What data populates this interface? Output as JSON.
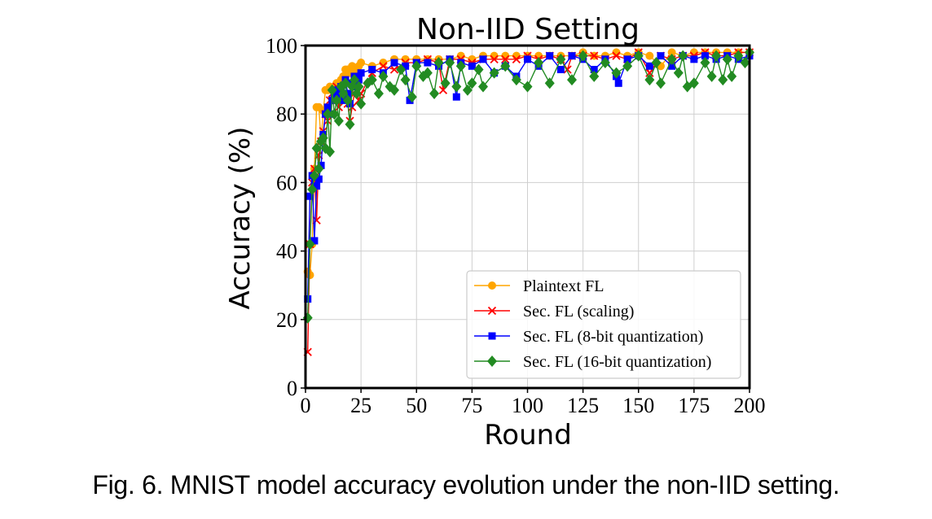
{
  "caption": "Fig. 6. MNIST model accuracy evolution under the non-IID setting.",
  "chart_data": {
    "type": "line",
    "title": "Non-IID Setting",
    "xlabel": "Round",
    "ylabel": "Accuracy (%)",
    "xlim": [
      0,
      200
    ],
    "ylim": [
      0,
      100
    ],
    "xticks": [
      0,
      25,
      50,
      75,
      100,
      125,
      150,
      175,
      200
    ],
    "yticks": [
      0,
      20,
      40,
      60,
      80,
      100
    ],
    "grid": true,
    "legend_position": "lower-right",
    "series": [
      {
        "name": "Plaintext FL",
        "color": "#FFA500",
        "marker": "circle",
        "x": [
          1,
          2,
          3,
          4,
          5,
          6,
          7,
          8,
          9,
          10,
          11,
          12,
          13,
          14,
          15,
          16,
          17,
          18,
          19,
          20,
          21,
          22,
          23,
          24,
          25,
          30,
          35,
          40,
          45,
          50,
          55,
          60,
          65,
          70,
          75,
          80,
          85,
          90,
          95,
          100,
          105,
          110,
          115,
          120,
          125,
          130,
          135,
          140,
          145,
          150,
          155,
          160,
          165,
          170,
          175,
          180,
          185,
          190,
          195,
          200
        ],
        "y": [
          34,
          33,
          42,
          64,
          82,
          82,
          72,
          81,
          87,
          87,
          88,
          87,
          88,
          89,
          88,
          90,
          91,
          93,
          93,
          92,
          94,
          91,
          93,
          94,
          95,
          94,
          95,
          96,
          96,
          96,
          96,
          96,
          96,
          97,
          96,
          97,
          97,
          97,
          97,
          97,
          97,
          97,
          97,
          97,
          98,
          97,
          97,
          98,
          97,
          98,
          97,
          94,
          98,
          97,
          98,
          98,
          98,
          98,
          98,
          98
        ]
      },
      {
        "name": "Sec. FL (scaling)",
        "color": "#FF0000",
        "marker": "x",
        "x": [
          1,
          2,
          3,
          4,
          5,
          6,
          7,
          8,
          9,
          10,
          11,
          12,
          13,
          14,
          15,
          16,
          17,
          18,
          19,
          20,
          21,
          22,
          23,
          24,
          25,
          30,
          35,
          40,
          45,
          50,
          55,
          60,
          62,
          65,
          70,
          75,
          80,
          85,
          90,
          95,
          100,
          105,
          110,
          115,
          118,
          120,
          125,
          130,
          135,
          140,
          145,
          150,
          155,
          160,
          165,
          170,
          175,
          180,
          185,
          190,
          195,
          200
        ],
        "y": [
          10.5,
          42,
          60,
          64,
          49,
          68,
          72,
          75,
          80,
          78,
          84,
          86,
          85,
          88,
          82,
          87,
          85,
          84,
          83,
          78,
          82,
          86,
          88,
          84,
          86,
          92,
          94,
          93,
          95,
          95,
          96,
          95,
          87,
          96,
          96,
          95,
          96,
          96,
          96,
          96,
          97,
          96,
          97,
          96,
          93,
          97,
          97,
          97,
          96,
          97,
          96,
          98,
          92,
          97,
          96,
          97,
          97,
          98,
          97,
          97,
          98,
          98
        ]
      },
      {
        "name": "Sec. FL (8-bit quantization)",
        "color": "#0000FF",
        "marker": "square",
        "x": [
          1,
          2,
          3,
          4,
          5,
          6,
          7,
          8,
          9,
          10,
          11,
          12,
          13,
          14,
          15,
          16,
          17,
          18,
          19,
          20,
          21,
          22,
          23,
          24,
          25,
          30,
          35,
          40,
          45,
          47,
          50,
          55,
          60,
          65,
          68,
          70,
          75,
          80,
          85,
          90,
          95,
          100,
          105,
          110,
          115,
          120,
          125,
          130,
          135,
          140,
          141,
          145,
          150,
          155,
          160,
          165,
          170,
          175,
          180,
          185,
          190,
          195,
          200
        ],
        "y": [
          26,
          56,
          62,
          43,
          59,
          61,
          65,
          74,
          80,
          82,
          80,
          84,
          86,
          87,
          85,
          88,
          84,
          90,
          86,
          83,
          89,
          91,
          88,
          90,
          92,
          93,
          92,
          95,
          94,
          84,
          95,
          95,
          94,
          96,
          85,
          95,
          94,
          96,
          92,
          94,
          91,
          96,
          94,
          97,
          93,
          97,
          96,
          93,
          96,
          91,
          89,
          96,
          97,
          94,
          97,
          94,
          97,
          96,
          97,
          96,
          97,
          96,
          97
        ]
      },
      {
        "name": "Sec. FL (16-bit quantization)",
        "color": "#228B22",
        "marker": "diamond",
        "x": [
          1,
          2,
          3,
          4,
          5,
          6,
          7,
          8,
          9,
          10,
          11,
          12,
          13,
          14,
          15,
          16,
          17,
          18,
          19,
          20,
          21,
          22,
          23,
          24,
          25,
          28,
          30,
          33,
          35,
          38,
          40,
          43,
          45,
          48,
          50,
          53,
          55,
          58,
          60,
          63,
          65,
          68,
          70,
          73,
          75,
          78,
          80,
          85,
          90,
          95,
          100,
          105,
          110,
          115,
          120,
          125,
          130,
          135,
          140,
          145,
          150,
          155,
          158,
          160,
          165,
          168,
          170,
          172,
          175,
          180,
          183,
          185,
          188,
          190,
          192,
          195,
          198,
          200
        ],
        "y": [
          20.5,
          42,
          58,
          62,
          70,
          64,
          72,
          73,
          70,
          80,
          69,
          87,
          80,
          84,
          78,
          88,
          86,
          89,
          84,
          77,
          88,
          90,
          86,
          88,
          83,
          89,
          90,
          86,
          91,
          88,
          87,
          93,
          90,
          85,
          94,
          91,
          92,
          86,
          95,
          89,
          95,
          88,
          94,
          87,
          89,
          93,
          88,
          92,
          94,
          90,
          88,
          95,
          89,
          96,
          90,
          97,
          91,
          95,
          92,
          94,
          97,
          90,
          95,
          89,
          96,
          92,
          97,
          88,
          89,
          95,
          91,
          97,
          90,
          96,
          91,
          97,
          95,
          98
        ]
      }
    ]
  }
}
